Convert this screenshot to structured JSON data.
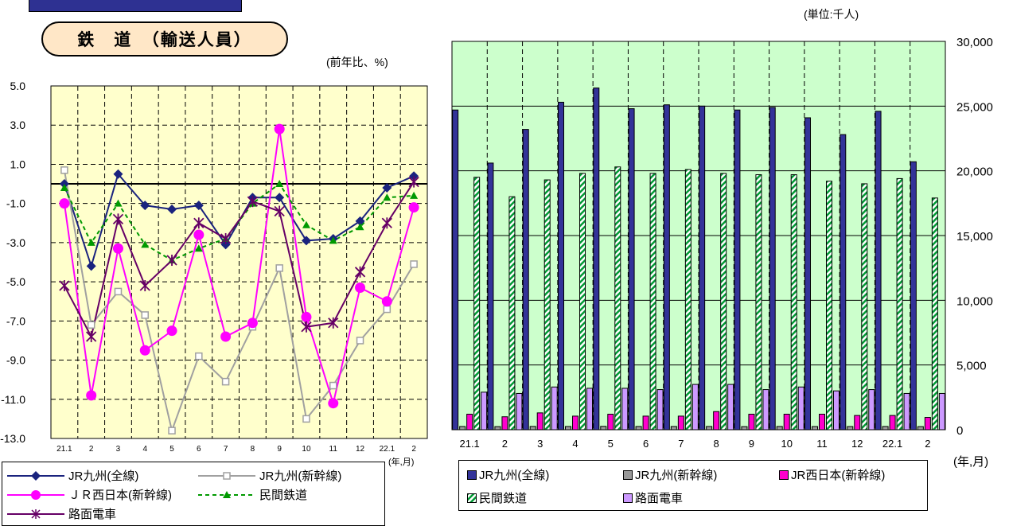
{
  "header": {
    "title": "鉄　道　（輸送人員）"
  },
  "chart_data": [
    {
      "type": "line",
      "unit_label": "(前年比、%)",
      "x_unit_label": "(年,月)",
      "categories": [
        "21.1",
        "2",
        "3",
        "4",
        "5",
        "6",
        "7",
        "8",
        "9",
        "10",
        "11",
        "12",
        "22.1",
        "2"
      ],
      "ylim": [
        -13,
        5
      ],
      "yticks": [
        "5.0",
        "3.0",
        "1.0",
        "-1.0",
        "-3.0",
        "-5.0",
        "-7.0",
        "-9.0",
        "-11.0",
        "-13.0"
      ],
      "grid": "dashed horizontal, dashed vertical",
      "legend_position": "bottom",
      "series": [
        {
          "name": "JR九州(全線)",
          "color": "#1a237e",
          "marker": "diamond",
          "dash": false,
          "values": [
            0.0,
            -4.2,
            0.5,
            -1.1,
            -1.3,
            -1.1,
            -3.1,
            -0.7,
            -0.7,
            -2.9,
            -2.8,
            -1.9,
            -0.2,
            0.4
          ]
        },
        {
          "name": "JR九州(新幹線)",
          "color": "#a0a0a0",
          "marker": "square",
          "dash": false,
          "values": [
            0.7,
            -7.2,
            -5.5,
            -6.7,
            -12.6,
            -8.8,
            -10.1,
            -7.3,
            -4.3,
            -12.0,
            -10.3,
            -8.0,
            -6.4,
            -4.1
          ]
        },
        {
          "name": "ＪＲ西日本(新幹線)",
          "color": "#ff00ff",
          "marker": "circle",
          "dash": false,
          "values": [
            -1.0,
            -10.8,
            -3.3,
            -8.5,
            -7.5,
            -2.6,
            -7.8,
            -7.1,
            2.8,
            -6.8,
            -11.2,
            -5.3,
            -6.0,
            -1.2
          ]
        },
        {
          "name": "民間鉄道",
          "color": "#009900",
          "marker": "triangle",
          "dash": true,
          "values": [
            -0.2,
            -3.0,
            -1.0,
            -3.1,
            -3.9,
            -3.3,
            -2.8,
            -1.0,
            0.0,
            -2.1,
            -2.9,
            -2.2,
            -0.7,
            -0.6
          ]
        },
        {
          "name": "路面電車",
          "color": "#660066",
          "marker": "star",
          "dash": false,
          "values": [
            -5.2,
            -7.8,
            -1.8,
            -5.2,
            -3.9,
            -2.0,
            -2.8,
            -0.9,
            -1.4,
            -7.3,
            -7.1,
            -4.5,
            -2.0,
            0.1
          ]
        }
      ]
    },
    {
      "type": "bar",
      "unit_label": "(単位:千人)",
      "x_unit_label": "(年,月)",
      "categories": [
        "21.1",
        "2",
        "3",
        "4",
        "5",
        "6",
        "7",
        "8",
        "9",
        "10",
        "11",
        "12",
        "22.1",
        "2"
      ],
      "ylim": [
        0,
        30000
      ],
      "yticks": [
        "30,000",
        "25,000",
        "20,000",
        "15,000",
        "10,000",
        "5,000",
        "0"
      ],
      "grid": "solid horizontal, dashed vertical",
      "legend_position": "bottom",
      "series": [
        {
          "name": "JR九州(全線)",
          "color": "#333399",
          "pattern": "solid",
          "values": [
            24700,
            20600,
            23200,
            25300,
            26400,
            24800,
            25100,
            25000,
            24700,
            24900,
            24100,
            22800,
            24600,
            20700
          ]
        },
        {
          "name": "JR九州(新幹線)",
          "color": "#999999",
          "pattern": "solid",
          "values": [
            250,
            240,
            255,
            250,
            260,
            250,
            250,
            250,
            240,
            250,
            245,
            245,
            250,
            240
          ]
        },
        {
          "name": "JR西日本(新幹線)",
          "color": "#ff00cc",
          "pattern": "solid",
          "values": [
            1200,
            1000,
            1300,
            1050,
            1200,
            1050,
            1050,
            1400,
            1200,
            1200,
            1200,
            1100,
            1100,
            950
          ]
        },
        {
          "name": "民間鉄道",
          "color": "#009933",
          "pattern": "hatch",
          "values": [
            19500,
            18000,
            19300,
            19800,
            20300,
            19800,
            20100,
            19800,
            19700,
            19700,
            19200,
            19000,
            19400,
            17900
          ]
        },
        {
          "name": "路面電車",
          "color": "#cc99ff",
          "pattern": "solid",
          "values": [
            2900,
            2800,
            3300,
            3200,
            3200,
            3100,
            3500,
            3500,
            3100,
            3300,
            3000,
            3100,
            2800,
            2800
          ]
        }
      ]
    }
  ]
}
